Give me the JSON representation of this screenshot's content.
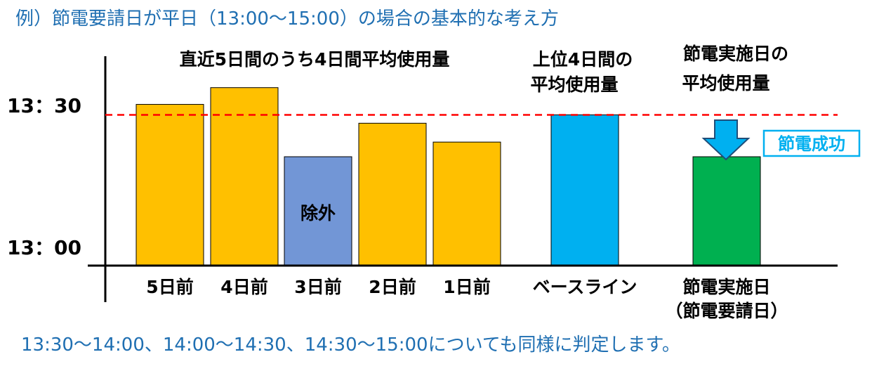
{
  "title": "例）節電要請日が平日（13:00～15:00）の場合の基本的な考え方",
  "footnote": "13:30～14:00、14:00～14:30、14:30～15:00についても同様に判定します。",
  "chart_data": {
    "type": "bar",
    "y_ticks": [
      "13：30",
      "13：00"
    ],
    "categories": [
      "5日前",
      "4日前",
      "3日前",
      "2日前",
      "1日前",
      "ベースライン",
      "節電実施日"
    ],
    "category_sublabels": [
      "",
      "",
      "",
      "",
      "",
      "",
      "（節電要請日）"
    ],
    "values": [
      0.77,
      0.85,
      0.52,
      0.68,
      0.59,
      0.72,
      0.52
    ],
    "ylim": [
      0,
      1
    ],
    "baseline_value": 0.72,
    "bar_colors": [
      "#ffc000",
      "#ffc000",
      "#7296d6",
      "#ffc000",
      "#ffc000",
      "#00b0f0",
      "#00b050"
    ],
    "bar_inner_labels": [
      "",
      "",
      "除外",
      "",
      "",
      "",
      ""
    ],
    "annotations": {
      "recent_days": "直近5日間のうち4日間平均使用量",
      "baseline_line1": "上位4日間の",
      "baseline_line2": "平均使用量",
      "event_line1": "節電実施日の",
      "event_line2": "平均使用量",
      "success_label": "節電成功"
    },
    "colors": {
      "dashed_line": "#ff0000",
      "arrow_fill": "#00b0f0",
      "success_border": "#00b0f0",
      "success_text": "#00b0f0"
    }
  }
}
